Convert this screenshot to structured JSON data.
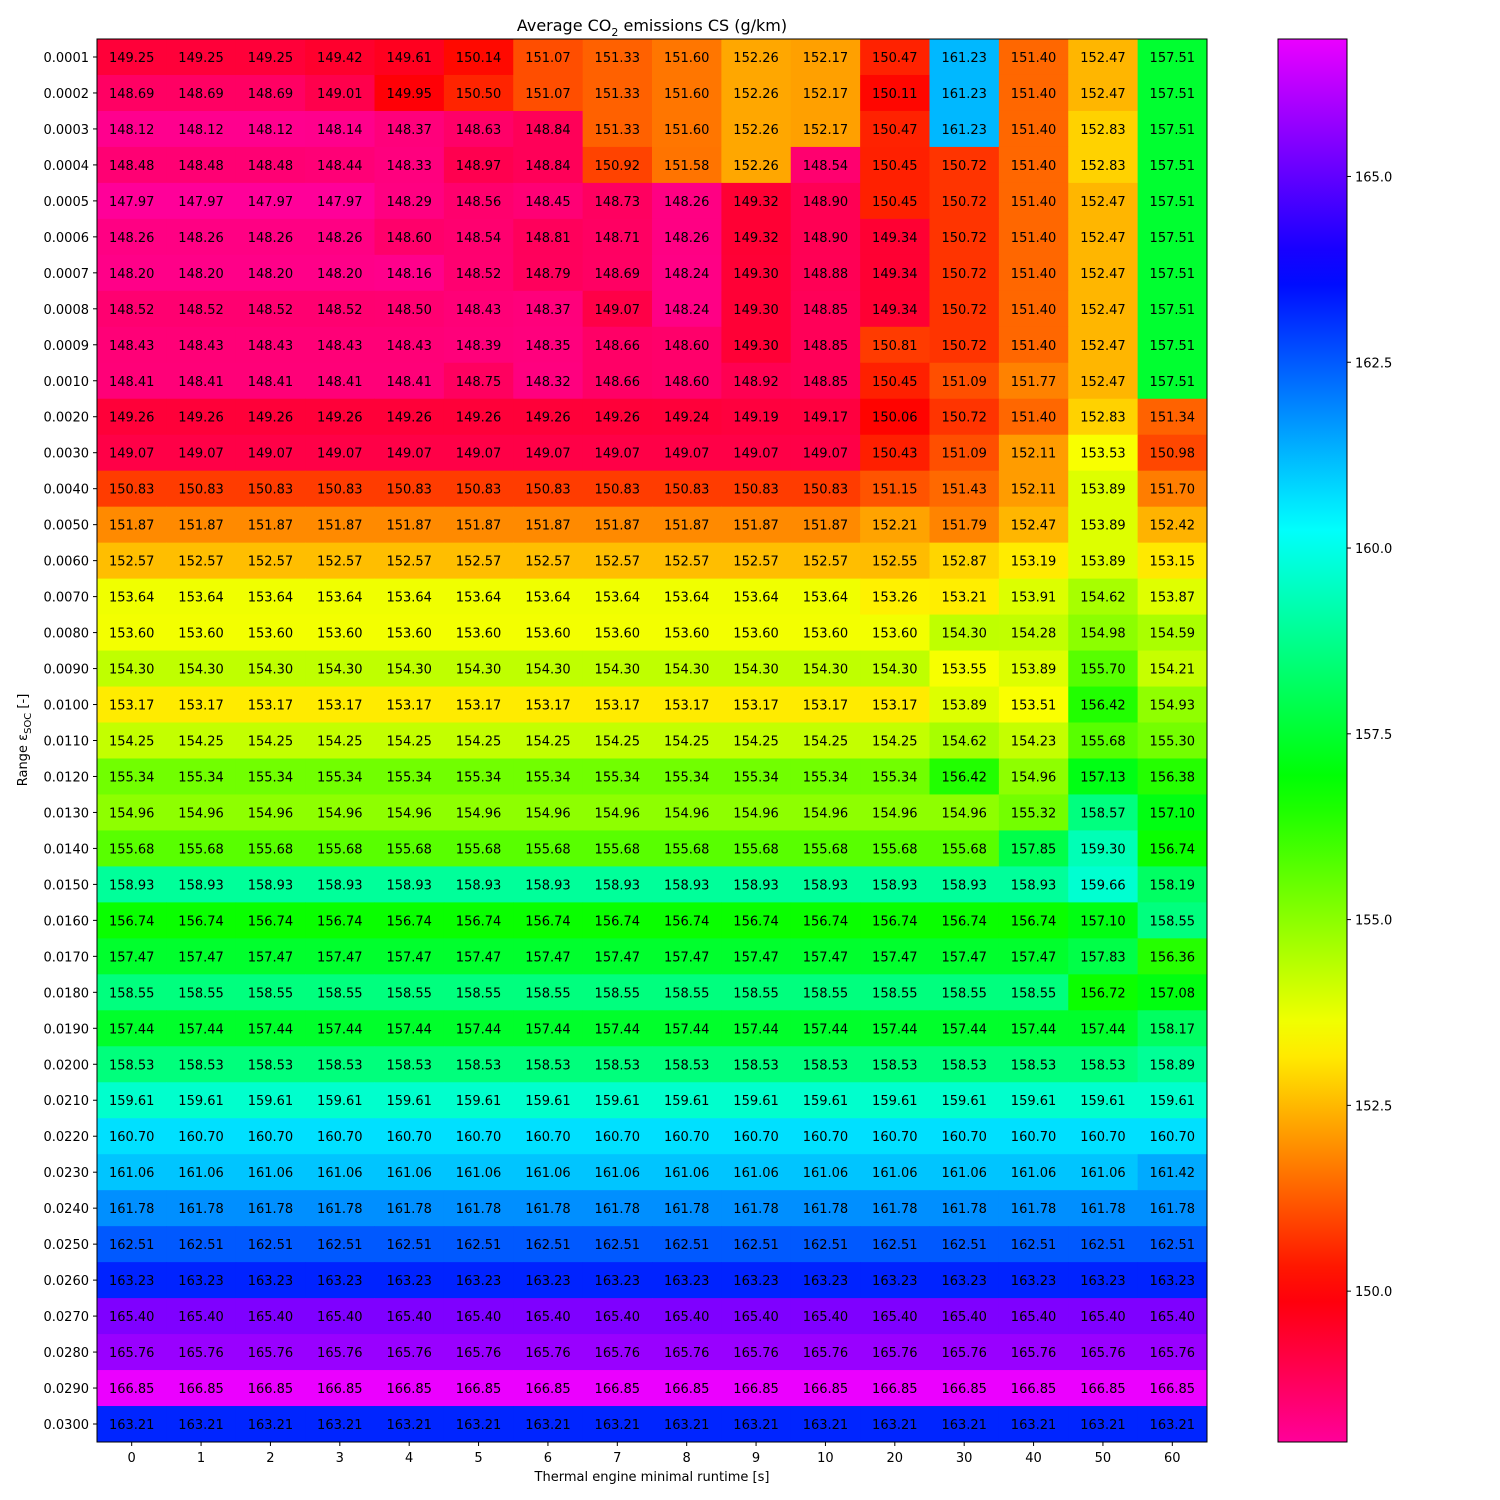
{
  "chart_data": {
    "type": "heatmap",
    "title": "Average CO",
    "title_subscript": "2",
    "title_suffix": " emissions CS (g/km)",
    "xlabel": "Thermal engine minimal runtime [s]",
    "ylabel": "Range ε",
    "ylabel_subscript": "SOC",
    "ylabel_suffix": " [-]",
    "colormap": "gist_rainbow",
    "color_range": [
      147.97,
      166.85
    ],
    "colorbar_ticks": [
      "150.0",
      "152.5",
      "155.0",
      "157.5",
      "160.0",
      "162.5",
      "165.0"
    ],
    "x_categories": [
      "0",
      "1",
      "2",
      "3",
      "4",
      "5",
      "6",
      "7",
      "8",
      "9",
      "10",
      "20",
      "30",
      "40",
      "50",
      "60"
    ],
    "y_categories": [
      "0.0001",
      "0.0002",
      "0.0003",
      "0.0004",
      "0.0005",
      "0.0006",
      "0.0007",
      "0.0008",
      "0.0009",
      "0.0010",
      "0.0020",
      "0.0030",
      "0.0040",
      "0.0050",
      "0.0060",
      "0.0070",
      "0.0080",
      "0.0090",
      "0.0100",
      "0.0110",
      "0.0120",
      "0.0130",
      "0.0140",
      "0.0150",
      "0.0160",
      "0.0170",
      "0.0180",
      "0.0190",
      "0.0200",
      "0.0210",
      "0.0220",
      "0.0230",
      "0.0240",
      "0.0250",
      "0.0260",
      "0.0270",
      "0.0280",
      "0.0290",
      "0.0300"
    ],
    "values": [
      [
        "149.25",
        "149.25",
        "149.25",
        "149.42",
        "149.61",
        "150.14",
        "151.07",
        "151.33",
        "151.60",
        "152.26",
        "152.17",
        "150.47",
        "161.23",
        "151.40",
        "152.47",
        "157.51"
      ],
      [
        "148.69",
        "148.69",
        "148.69",
        "149.01",
        "149.95",
        "150.50",
        "151.07",
        "151.33",
        "151.60",
        "152.26",
        "152.17",
        "150.11",
        "161.23",
        "151.40",
        "152.47",
        "157.51"
      ],
      [
        "148.12",
        "148.12",
        "148.12",
        "148.14",
        "148.37",
        "148.63",
        "148.84",
        "151.33",
        "151.60",
        "152.26",
        "152.17",
        "150.47",
        "161.23",
        "151.40",
        "152.83",
        "157.51"
      ],
      [
        "148.48",
        "148.48",
        "148.48",
        "148.44",
        "148.33",
        "148.97",
        "148.84",
        "150.92",
        "151.58",
        "152.26",
        "148.54",
        "150.45",
        "150.72",
        "151.40",
        "152.83",
        "157.51"
      ],
      [
        "147.97",
        "147.97",
        "147.97",
        "147.97",
        "148.29",
        "148.56",
        "148.45",
        "148.73",
        "148.26",
        "149.32",
        "148.90",
        "150.45",
        "150.72",
        "151.40",
        "152.47",
        "157.51"
      ],
      [
        "148.26",
        "148.26",
        "148.26",
        "148.26",
        "148.60",
        "148.54",
        "148.81",
        "148.71",
        "148.26",
        "149.32",
        "148.90",
        "149.34",
        "150.72",
        "151.40",
        "152.47",
        "157.51"
      ],
      [
        "148.20",
        "148.20",
        "148.20",
        "148.20",
        "148.16",
        "148.52",
        "148.79",
        "148.69",
        "148.24",
        "149.30",
        "148.88",
        "149.34",
        "150.72",
        "151.40",
        "152.47",
        "157.51"
      ],
      [
        "148.52",
        "148.52",
        "148.52",
        "148.52",
        "148.50",
        "148.43",
        "148.37",
        "149.07",
        "148.24",
        "149.30",
        "148.85",
        "149.34",
        "150.72",
        "151.40",
        "152.47",
        "157.51"
      ],
      [
        "148.43",
        "148.43",
        "148.43",
        "148.43",
        "148.43",
        "148.39",
        "148.35",
        "148.66",
        "148.60",
        "149.30",
        "148.85",
        "150.81",
        "150.72",
        "151.40",
        "152.47",
        "157.51"
      ],
      [
        "148.41",
        "148.41",
        "148.41",
        "148.41",
        "148.41",
        "148.75",
        "148.32",
        "148.66",
        "148.60",
        "148.92",
        "148.85",
        "150.45",
        "151.09",
        "151.77",
        "152.47",
        "157.51"
      ],
      [
        "149.26",
        "149.26",
        "149.26",
        "149.26",
        "149.26",
        "149.26",
        "149.26",
        "149.26",
        "149.24",
        "149.19",
        "149.17",
        "150.06",
        "150.72",
        "151.40",
        "152.83",
        "151.34"
      ],
      [
        "149.07",
        "149.07",
        "149.07",
        "149.07",
        "149.07",
        "149.07",
        "149.07",
        "149.07",
        "149.07",
        "149.07",
        "149.07",
        "150.43",
        "151.09",
        "152.11",
        "153.53",
        "150.98"
      ],
      [
        "150.83",
        "150.83",
        "150.83",
        "150.83",
        "150.83",
        "150.83",
        "150.83",
        "150.83",
        "150.83",
        "150.83",
        "150.83",
        "151.15",
        "151.43",
        "152.11",
        "153.89",
        "151.70"
      ],
      [
        "151.87",
        "151.87",
        "151.87",
        "151.87",
        "151.87",
        "151.87",
        "151.87",
        "151.87",
        "151.87",
        "151.87",
        "151.87",
        "152.21",
        "151.79",
        "152.47",
        "153.89",
        "152.42"
      ],
      [
        "152.57",
        "152.57",
        "152.57",
        "152.57",
        "152.57",
        "152.57",
        "152.57",
        "152.57",
        "152.57",
        "152.57",
        "152.57",
        "152.55",
        "152.87",
        "153.19",
        "153.89",
        "153.15"
      ],
      [
        "153.64",
        "153.64",
        "153.64",
        "153.64",
        "153.64",
        "153.64",
        "153.64",
        "153.64",
        "153.64",
        "153.64",
        "153.64",
        "153.26",
        "153.21",
        "153.91",
        "154.62",
        "153.87"
      ],
      [
        "153.60",
        "153.60",
        "153.60",
        "153.60",
        "153.60",
        "153.60",
        "153.60",
        "153.60",
        "153.60",
        "153.60",
        "153.60",
        "153.60",
        "154.30",
        "154.28",
        "154.98",
        "154.59"
      ],
      [
        "154.30",
        "154.30",
        "154.30",
        "154.30",
        "154.30",
        "154.30",
        "154.30",
        "154.30",
        "154.30",
        "154.30",
        "154.30",
        "154.30",
        "153.55",
        "153.89",
        "155.70",
        "154.21"
      ],
      [
        "153.17",
        "153.17",
        "153.17",
        "153.17",
        "153.17",
        "153.17",
        "153.17",
        "153.17",
        "153.17",
        "153.17",
        "153.17",
        "153.17",
        "153.89",
        "153.51",
        "156.42",
        "154.93"
      ],
      [
        "154.25",
        "154.25",
        "154.25",
        "154.25",
        "154.25",
        "154.25",
        "154.25",
        "154.25",
        "154.25",
        "154.25",
        "154.25",
        "154.25",
        "154.62",
        "154.23",
        "155.68",
        "155.30"
      ],
      [
        "155.34",
        "155.34",
        "155.34",
        "155.34",
        "155.34",
        "155.34",
        "155.34",
        "155.34",
        "155.34",
        "155.34",
        "155.34",
        "155.34",
        "156.42",
        "154.96",
        "157.13",
        "156.38"
      ],
      [
        "154.96",
        "154.96",
        "154.96",
        "154.96",
        "154.96",
        "154.96",
        "154.96",
        "154.96",
        "154.96",
        "154.96",
        "154.96",
        "154.96",
        "154.96",
        "155.32",
        "158.57",
        "157.10"
      ],
      [
        "155.68",
        "155.68",
        "155.68",
        "155.68",
        "155.68",
        "155.68",
        "155.68",
        "155.68",
        "155.68",
        "155.68",
        "155.68",
        "155.68",
        "155.68",
        "157.85",
        "159.30",
        "156.74"
      ],
      [
        "158.93",
        "158.93",
        "158.93",
        "158.93",
        "158.93",
        "158.93",
        "158.93",
        "158.93",
        "158.93",
        "158.93",
        "158.93",
        "158.93",
        "158.93",
        "158.93",
        "159.66",
        "158.19"
      ],
      [
        "156.74",
        "156.74",
        "156.74",
        "156.74",
        "156.74",
        "156.74",
        "156.74",
        "156.74",
        "156.74",
        "156.74",
        "156.74",
        "156.74",
        "156.74",
        "156.74",
        "157.10",
        "158.55"
      ],
      [
        "157.47",
        "157.47",
        "157.47",
        "157.47",
        "157.47",
        "157.47",
        "157.47",
        "157.47",
        "157.47",
        "157.47",
        "157.47",
        "157.47",
        "157.47",
        "157.47",
        "157.83",
        "156.36"
      ],
      [
        "158.55",
        "158.55",
        "158.55",
        "158.55",
        "158.55",
        "158.55",
        "158.55",
        "158.55",
        "158.55",
        "158.55",
        "158.55",
        "158.55",
        "158.55",
        "158.55",
        "156.72",
        "157.08"
      ],
      [
        "157.44",
        "157.44",
        "157.44",
        "157.44",
        "157.44",
        "157.44",
        "157.44",
        "157.44",
        "157.44",
        "157.44",
        "157.44",
        "157.44",
        "157.44",
        "157.44",
        "157.44",
        "158.17"
      ],
      [
        "158.53",
        "158.53",
        "158.53",
        "158.53",
        "158.53",
        "158.53",
        "158.53",
        "158.53",
        "158.53",
        "158.53",
        "158.53",
        "158.53",
        "158.53",
        "158.53",
        "158.53",
        "158.89"
      ],
      [
        "159.61",
        "159.61",
        "159.61",
        "159.61",
        "159.61",
        "159.61",
        "159.61",
        "159.61",
        "159.61",
        "159.61",
        "159.61",
        "159.61",
        "159.61",
        "159.61",
        "159.61",
        "159.61"
      ],
      [
        "160.70",
        "160.70",
        "160.70",
        "160.70",
        "160.70",
        "160.70",
        "160.70",
        "160.70",
        "160.70",
        "160.70",
        "160.70",
        "160.70",
        "160.70",
        "160.70",
        "160.70",
        "160.70"
      ],
      [
        "161.06",
        "161.06",
        "161.06",
        "161.06",
        "161.06",
        "161.06",
        "161.06",
        "161.06",
        "161.06",
        "161.06",
        "161.06",
        "161.06",
        "161.06",
        "161.06",
        "161.06",
        "161.42"
      ],
      [
        "161.78",
        "161.78",
        "161.78",
        "161.78",
        "161.78",
        "161.78",
        "161.78",
        "161.78",
        "161.78",
        "161.78",
        "161.78",
        "161.78",
        "161.78",
        "161.78",
        "161.78",
        "161.78"
      ],
      [
        "162.51",
        "162.51",
        "162.51",
        "162.51",
        "162.51",
        "162.51",
        "162.51",
        "162.51",
        "162.51",
        "162.51",
        "162.51",
        "162.51",
        "162.51",
        "162.51",
        "162.51",
        "162.51"
      ],
      [
        "163.23",
        "163.23",
        "163.23",
        "163.23",
        "163.23",
        "163.23",
        "163.23",
        "163.23",
        "163.23",
        "163.23",
        "163.23",
        "163.23",
        "163.23",
        "163.23",
        "163.23",
        "163.23"
      ],
      [
        "165.40",
        "165.40",
        "165.40",
        "165.40",
        "165.40",
        "165.40",
        "165.40",
        "165.40",
        "165.40",
        "165.40",
        "165.40",
        "165.40",
        "165.40",
        "165.40",
        "165.40",
        "165.40"
      ],
      [
        "165.76",
        "165.76",
        "165.76",
        "165.76",
        "165.76",
        "165.76",
        "165.76",
        "165.76",
        "165.76",
        "165.76",
        "165.76",
        "165.76",
        "165.76",
        "165.76",
        "165.76",
        "165.76"
      ],
      [
        "166.85",
        "166.85",
        "166.85",
        "166.85",
        "166.85",
        "166.85",
        "166.85",
        "166.85",
        "166.85",
        "166.85",
        "166.85",
        "166.85",
        "166.85",
        "166.85",
        "166.85",
        "166.85"
      ],
      [
        "163.21",
        "163.21",
        "163.21",
        "163.21",
        "163.21",
        "163.21",
        "163.21",
        "163.21",
        "163.21",
        "163.21",
        "163.21",
        "163.21",
        "163.21",
        "163.21",
        "163.21",
        "163.21"
      ]
    ]
  }
}
